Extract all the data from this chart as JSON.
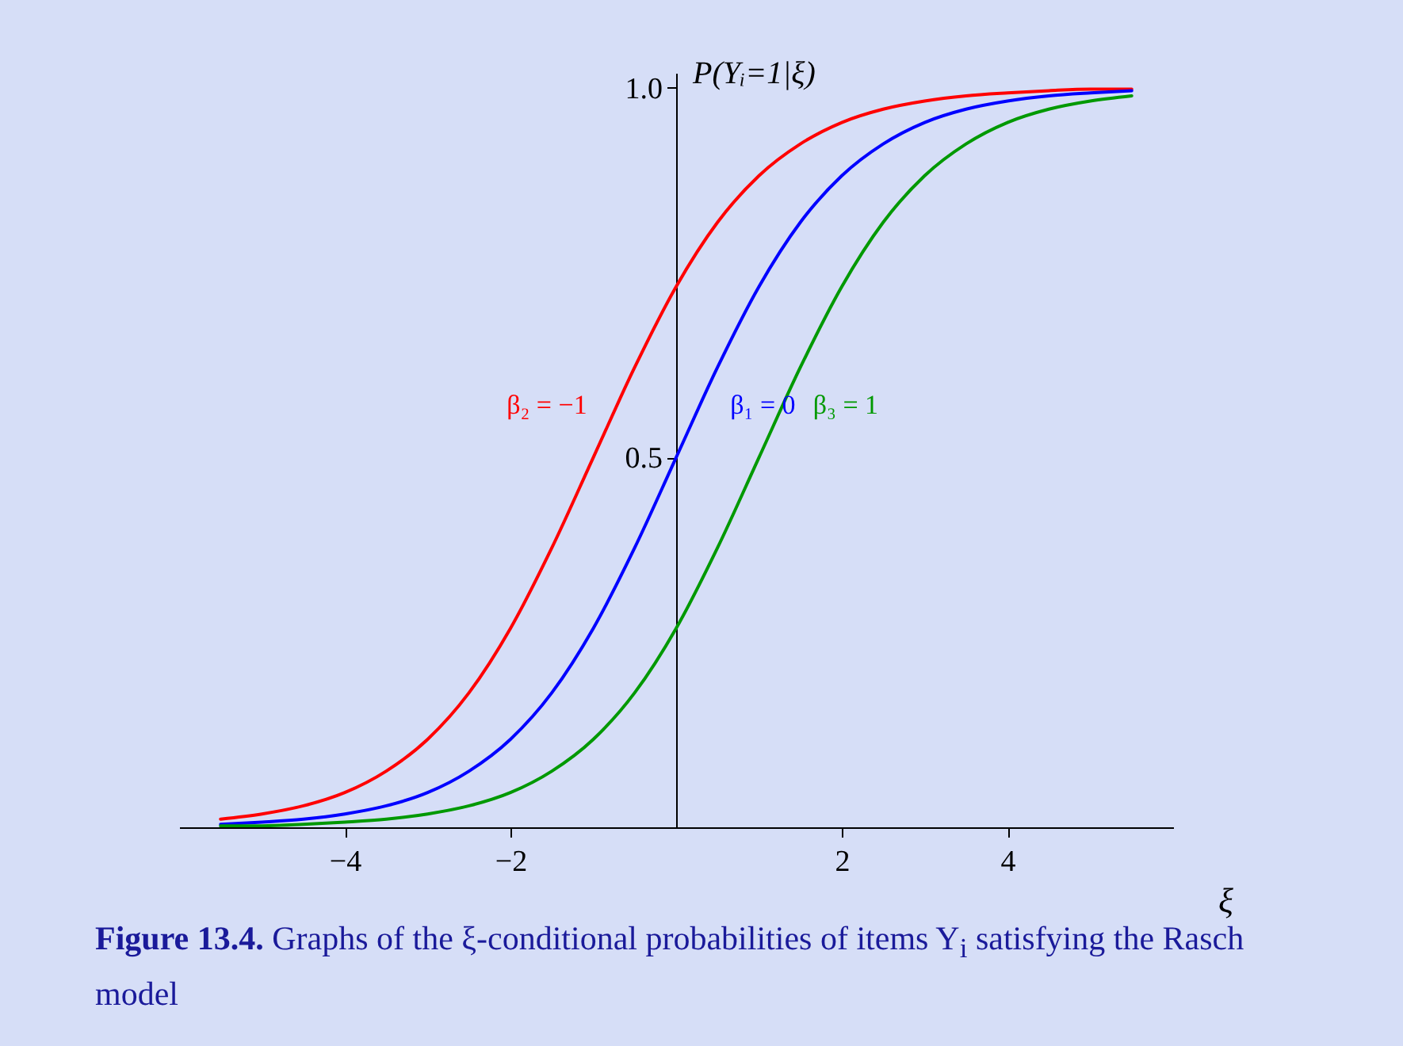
{
  "chart_data": {
    "type": "line",
    "title": "Figure 13.4.",
    "subtitle": "Graphs of the ξ-conditional probabilities of items Y$_{i}$ satisfying the Rasch model",
    "xlabel": "ξ",
    "ylabel": "P(Yᵢ=1|ξ)",
    "x": [
      -5.5,
      -5,
      -4.5,
      -4,
      -3.5,
      -3,
      -2.5,
      -2,
      -1.5,
      -1,
      -0.5,
      0,
      0.5,
      1,
      1.5,
      2,
      2.5,
      3,
      3.5,
      4,
      4.5,
      5,
      5.5
    ],
    "series": [
      {
        "name": "β₂ = −1",
        "color": "#ff0000",
        "values": [
          0.011,
          0.018,
          0.029,
          0.047,
          0.076,
          0.119,
          0.182,
          0.269,
          0.378,
          0.5,
          0.622,
          0.731,
          0.818,
          0.881,
          0.924,
          0.953,
          0.971,
          0.982,
          0.989,
          0.993,
          0.996,
          0.998,
          0.998
        ]
      },
      {
        "name": "β₁ = 0",
        "color": "#0000ff",
        "values": [
          0.004,
          0.007,
          0.011,
          0.018,
          0.029,
          0.047,
          0.076,
          0.119,
          0.182,
          0.269,
          0.378,
          0.5,
          0.622,
          0.731,
          0.818,
          0.881,
          0.924,
          0.953,
          0.971,
          0.982,
          0.989,
          0.993,
          0.996
        ]
      },
      {
        "name": "β₃ = 1",
        "color": "#009900",
        "values": [
          0.002,
          0.002,
          0.004,
          0.007,
          0.011,
          0.018,
          0.029,
          0.047,
          0.076,
          0.119,
          0.182,
          0.269,
          0.378,
          0.5,
          0.622,
          0.731,
          0.818,
          0.881,
          0.924,
          0.953,
          0.971,
          0.982,
          0.989
        ]
      }
    ],
    "xlim": [
      -6,
      6
    ],
    "xticks": [
      -4,
      -2,
      2,
      4
    ],
    "ylim": [
      0,
      1.02
    ],
    "yticks": [
      0.5,
      {
        "value": 1,
        "label": "1.0"
      }
    ],
    "grid": false,
    "legend": false,
    "marker": "none",
    "line_style": "solid"
  }
}
